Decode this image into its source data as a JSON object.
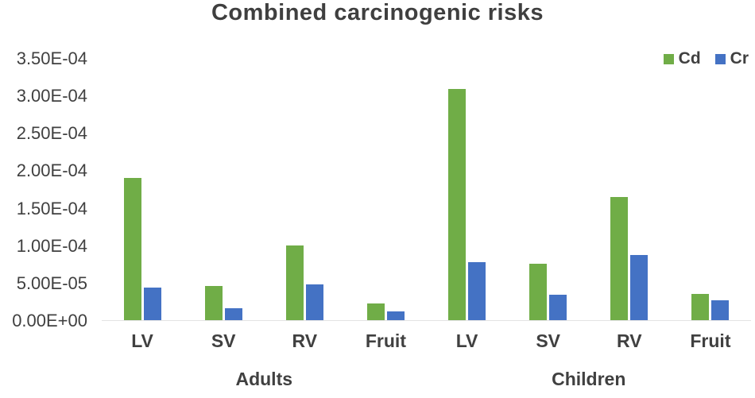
{
  "chart_data": {
    "type": "bar",
    "title": "Combined carcinogenic risks",
    "groups": [
      "Adults",
      "Children"
    ],
    "categories": [
      "LV",
      "SV",
      "RV",
      "Fruit",
      "LV",
      "SV",
      "RV",
      "Fruit"
    ],
    "series": [
      {
        "name": "Cd",
        "color": "#70AD47",
        "values": [
          0.00019,
          4.6e-05,
          0.0001,
          2.2e-05,
          0.00031,
          7.6e-05,
          0.000165,
          3.5e-05
        ]
      },
      {
        "name": "Cr",
        "color": "#4472C4",
        "values": [
          4.4e-05,
          1.6e-05,
          4.8e-05,
          1.2e-05,
          7.8e-05,
          3.4e-05,
          8.7e-05,
          2.7e-05
        ]
      }
    ],
    "y_ticks": [
      "3.50E-04",
      "3.00E-04",
      "2.50E-04",
      "2.00E-04",
      "1.50E-04",
      "1.00E-04",
      "5.00E-05",
      "0.00E+00"
    ],
    "ylim": [
      0,
      0.00035
    ],
    "xlabel": "",
    "ylabel": "",
    "grid": false,
    "legend_position": "top-right",
    "legend_entries": [
      "Cd",
      "Cr"
    ]
  }
}
